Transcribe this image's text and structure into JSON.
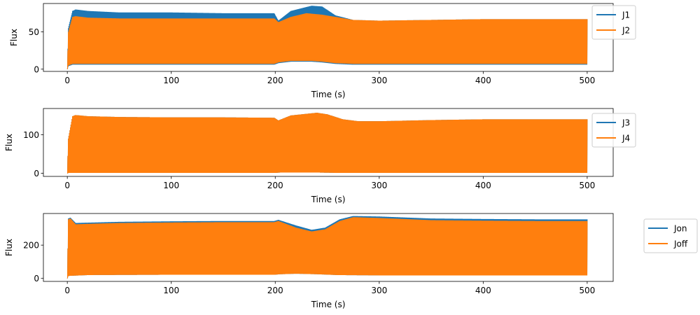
{
  "chart_data": [
    {
      "type": "line",
      "title": "",
      "xlabel": "Time (s)",
      "ylabel": "Flux",
      "xlim": [
        -23,
        525
      ],
      "ylim": [
        -3,
        88
      ],
      "xticks": [
        0,
        100,
        200,
        300,
        400,
        500
      ],
      "xtick_labels": [
        "0",
        "100",
        "200",
        "300",
        "400",
        "500"
      ],
      "yticks": [
        0,
        50
      ],
      "ytick_labels": [
        "0",
        "50"
      ],
      "legend_position": "right",
      "legend": [
        "J1",
        "J2"
      ],
      "series": [
        {
          "name": "J1",
          "color": "#1f77b4",
          "style": "rapid oscillation (filled band)",
          "upper": [
            [
              0,
              0
            ],
            [
              1,
              55
            ],
            [
              5,
              78
            ],
            [
              8,
              80
            ],
            [
              20,
              78
            ],
            [
              50,
              76
            ],
            [
              100,
              76
            ],
            [
              150,
              75
            ],
            [
              199,
              75
            ],
            [
              203,
              65
            ],
            [
              215,
              78
            ],
            [
              235,
              85
            ],
            [
              245,
              84
            ],
            [
              258,
              72
            ],
            [
              275,
              66
            ],
            [
              300,
              65
            ],
            [
              350,
              66
            ],
            [
              400,
              67
            ],
            [
              450,
              67
            ],
            [
              500,
              67
            ]
          ],
          "lower": [
            [
              0,
              0
            ],
            [
              1,
              4
            ],
            [
              5,
              6
            ],
            [
              20,
              6
            ],
            [
              50,
              6
            ],
            [
              100,
              6
            ],
            [
              150,
              6
            ],
            [
              199,
              6
            ],
            [
              203,
              8
            ],
            [
              215,
              10
            ],
            [
              235,
              10
            ],
            [
              245,
              9
            ],
            [
              258,
              7
            ],
            [
              275,
              6
            ],
            [
              300,
              6
            ],
            [
              350,
              6
            ],
            [
              400,
              6
            ],
            [
              450,
              6
            ],
            [
              500,
              6
            ]
          ]
        },
        {
          "name": "J2",
          "color": "#ff7f0e",
          "style": "rapid oscillation (filled band)",
          "upper": [
            [
              0,
              0
            ],
            [
              1,
              50
            ],
            [
              5,
              70
            ],
            [
              8,
              71
            ],
            [
              20,
              69
            ],
            [
              50,
              68
            ],
            [
              100,
              68
            ],
            [
              150,
              68
            ],
            [
              199,
              68
            ],
            [
              203,
              63
            ],
            [
              215,
              70
            ],
            [
              230,
              75
            ],
            [
              245,
              73
            ],
            [
              258,
              70
            ],
            [
              275,
              66
            ],
            [
              300,
              65
            ],
            [
              350,
              66
            ],
            [
              400,
              67
            ],
            [
              450,
              67
            ],
            [
              500,
              67
            ]
          ],
          "lower": [
            [
              0,
              0
            ],
            [
              1,
              5
            ],
            [
              5,
              7
            ],
            [
              20,
              7
            ],
            [
              50,
              7
            ],
            [
              100,
              7
            ],
            [
              150,
              7
            ],
            [
              199,
              7
            ],
            [
              203,
              9
            ],
            [
              215,
              11
            ],
            [
              235,
              11
            ],
            [
              245,
              10
            ],
            [
              258,
              8
            ],
            [
              275,
              7
            ],
            [
              300,
              7
            ],
            [
              350,
              7
            ],
            [
              400,
              7
            ],
            [
              450,
              7
            ],
            [
              500,
              7
            ]
          ]
        }
      ]
    },
    {
      "type": "line",
      "title": "",
      "xlabel": "Time (s)",
      "ylabel": "Flux",
      "xlim": [
        -23,
        525
      ],
      "ylim": [
        -8,
        168
      ],
      "xticks": [
        0,
        100,
        200,
        300,
        400,
        500
      ],
      "xtick_labels": [
        "0",
        "100",
        "200",
        "300",
        "400",
        "500"
      ],
      "yticks": [
        0,
        100
      ],
      "ytick_labels": [
        "0",
        "100"
      ],
      "legend_position": "right",
      "legend": [
        "J3",
        "J4"
      ],
      "series": [
        {
          "name": "J3",
          "color": "#1f77b4",
          "style": "rapid oscillation (filled band)",
          "upper": [
            [
              0,
              0
            ],
            [
              1,
              90
            ],
            [
              5,
              148
            ],
            [
              8,
              151
            ],
            [
              20,
              148
            ],
            [
              50,
              146
            ],
            [
              100,
              145
            ],
            [
              150,
              145
            ],
            [
              199,
              144
            ],
            [
              203,
              137
            ],
            [
              215,
              150
            ],
            [
              240,
              157
            ],
            [
              250,
              153
            ],
            [
              265,
              140
            ],
            [
              280,
              135
            ],
            [
              300,
              135
            ],
            [
              350,
              138
            ],
            [
              400,
              140
            ],
            [
              450,
              140
            ],
            [
              500,
              140
            ]
          ],
          "lower": [
            [
              0,
              0
            ],
            [
              1,
              1
            ],
            [
              20,
              1
            ],
            [
              200,
              1
            ],
            [
              205,
              2
            ],
            [
              240,
              2
            ],
            [
              260,
              1
            ],
            [
              500,
              1
            ]
          ]
        },
        {
          "name": "J4",
          "color": "#ff7f0e",
          "style": "rapid oscillation (filled band)",
          "upper": [
            [
              0,
              0
            ],
            [
              1,
              90
            ],
            [
              5,
              148
            ],
            [
              8,
              151
            ],
            [
              20,
              148
            ],
            [
              50,
              146
            ],
            [
              100,
              145
            ],
            [
              150,
              145
            ],
            [
              199,
              144
            ],
            [
              203,
              137
            ],
            [
              215,
              150
            ],
            [
              240,
              157
            ],
            [
              250,
              153
            ],
            [
              265,
              140
            ],
            [
              280,
              135
            ],
            [
              300,
              135
            ],
            [
              350,
              138
            ],
            [
              400,
              140
            ],
            [
              450,
              140
            ],
            [
              500,
              140
            ]
          ],
          "lower": [
            [
              0,
              0
            ],
            [
              1,
              1
            ],
            [
              20,
              1
            ],
            [
              200,
              1
            ],
            [
              205,
              2
            ],
            [
              240,
              2
            ],
            [
              260,
              1
            ],
            [
              500,
              1
            ]
          ]
        }
      ]
    },
    {
      "type": "line",
      "title": "",
      "xlabel": "Time (s)",
      "ylabel": "Flux",
      "xlim": [
        -23,
        525
      ],
      "ylim": [
        -18,
        390
      ],
      "xticks": [
        0,
        100,
        200,
        300,
        400,
        500
      ],
      "xtick_labels": [
        "0",
        "100",
        "200",
        "300",
        "400",
        "500"
      ],
      "yticks": [
        0,
        200
      ],
      "ytick_labels": [
        "0",
        "200"
      ],
      "legend_position": "outside right",
      "legend": [
        "Jon",
        "Joff"
      ],
      "series": [
        {
          "name": "Jon",
          "color": "#1f77b4",
          "style": "rapid oscillation (filled band)",
          "upper": [
            [
              0,
              0
            ],
            [
              1,
              360
            ],
            [
              3,
              365
            ],
            [
              8,
              333
            ],
            [
              20,
              335
            ],
            [
              50,
              340
            ],
            [
              100,
              343
            ],
            [
              150,
              345
            ],
            [
              199,
              345
            ],
            [
              203,
              352
            ],
            [
              220,
              318
            ],
            [
              235,
              292
            ],
            [
              248,
              305
            ],
            [
              262,
              355
            ],
            [
              275,
              375
            ],
            [
              300,
              372
            ],
            [
              350,
              360
            ],
            [
              400,
              357
            ],
            [
              450,
              355
            ],
            [
              500,
              355
            ]
          ],
          "lower": [
            [
              0,
              0
            ],
            [
              1,
              15
            ],
            [
              20,
              20
            ],
            [
              100,
              22
            ],
            [
              199,
              22
            ],
            [
              205,
              25
            ],
            [
              220,
              28
            ],
            [
              240,
              25
            ],
            [
              260,
              20
            ],
            [
              300,
              18
            ],
            [
              500,
              18
            ]
          ]
        },
        {
          "name": "Joff",
          "color": "#ff7f0e",
          "style": "rapid oscillation (filled band)",
          "upper": [
            [
              0,
              0
            ],
            [
              1,
              355
            ],
            [
              3,
              360
            ],
            [
              8,
              325
            ],
            [
              20,
              328
            ],
            [
              50,
              333
            ],
            [
              100,
              336
            ],
            [
              150,
              338
            ],
            [
              199,
              338
            ],
            [
              203,
              345
            ],
            [
              220,
              305
            ],
            [
              235,
              282
            ],
            [
              248,
              295
            ],
            [
              262,
              345
            ],
            [
              275,
              368
            ],
            [
              300,
              363
            ],
            [
              350,
              350
            ],
            [
              400,
              347
            ],
            [
              450,
              345
            ],
            [
              500,
              345
            ]
          ],
          "lower": [
            [
              0,
              0
            ],
            [
              1,
              15
            ],
            [
              20,
              20
            ],
            [
              100,
              22
            ],
            [
              199,
              22
            ],
            [
              205,
              25
            ],
            [
              220,
              28
            ],
            [
              240,
              25
            ],
            [
              260,
              20
            ],
            [
              300,
              18
            ],
            [
              500,
              18
            ]
          ]
        }
      ]
    }
  ]
}
